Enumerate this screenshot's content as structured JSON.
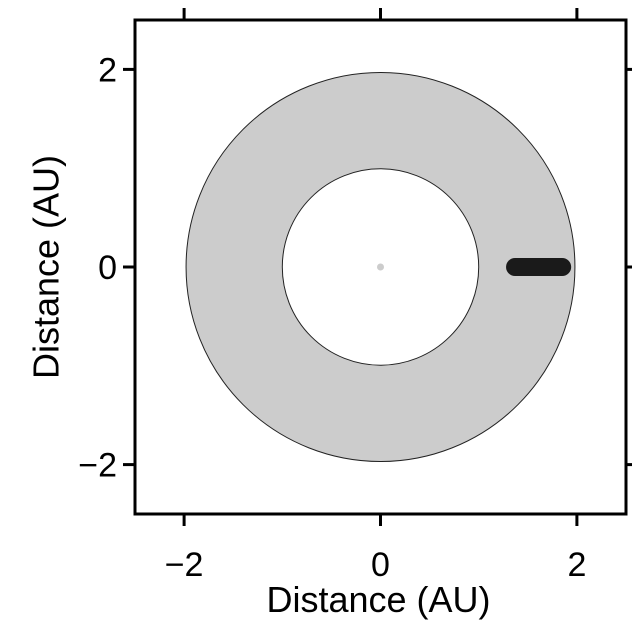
{
  "chart_data": {
    "type": "scatter",
    "xlabel": "Distance (AU)",
    "ylabel": "Distance (AU)",
    "xlim": [
      -2.5,
      2.5
    ],
    "ylim": [
      -2.5,
      2.5
    ],
    "x_ticks": [
      -2,
      0,
      2
    ],
    "y_ticks": [
      -2,
      0,
      2
    ],
    "x_tick_labels": [
      "−2",
      "0",
      "2"
    ],
    "y_tick_labels": [
      "−2",
      "0",
      "2"
    ],
    "grid": false,
    "legend": "none",
    "habitable_zone": {
      "center": [
        0,
        0
      ],
      "inner_radius": 1.0,
      "outer_radius": 1.98,
      "fill_color": "#cccccc"
    },
    "star": {
      "x": 0,
      "y": 0,
      "color": "#cccccc"
    },
    "planet_orbit": {
      "x_min": 1.37,
      "x_max": 1.85,
      "y": 0,
      "color": "#1a1a1a"
    }
  }
}
